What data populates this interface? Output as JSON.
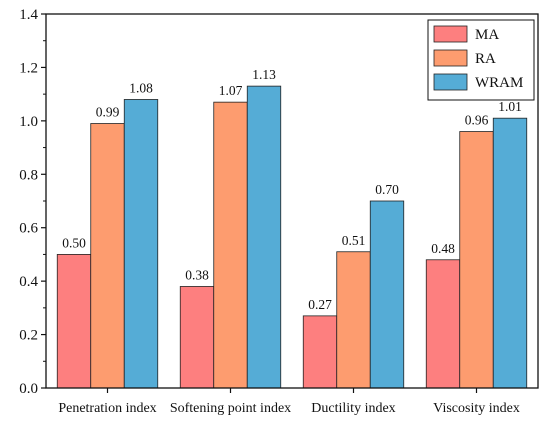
{
  "chart_data": {
    "type": "bar",
    "categories": [
      "Penetration index",
      "Softening point index",
      "Ductility index",
      "Viscosity index"
    ],
    "series": [
      {
        "name": "MA",
        "values": [
          0.5,
          0.38,
          0.27,
          0.48
        ],
        "color": "#fd7f7f"
      },
      {
        "name": "RA",
        "values": [
          0.99,
          1.07,
          0.51,
          0.96
        ],
        "color": "#fd9c6f"
      },
      {
        "name": "WRAM",
        "values": [
          1.08,
          1.13,
          0.7,
          1.01
        ],
        "color": "#55acd6"
      }
    ],
    "data_labels": [
      [
        "0.50",
        "0.99",
        "1.08"
      ],
      [
        "0.38",
        "1.07",
        "1.13"
      ],
      [
        "0.27",
        "0.51",
        "0.70"
      ],
      [
        "0.48",
        "0.96",
        "1.01"
      ]
    ],
    "title": "",
    "xlabel": "",
    "ylabel": "",
    "ylim": [
      0,
      1.4
    ],
    "yticks": [
      0.0,
      0.2,
      0.4,
      0.6,
      0.8,
      1.0,
      1.2,
      1.4
    ],
    "ytick_labels": [
      "0.0",
      "0.2",
      "0.4",
      "0.6",
      "0.8",
      "1.0",
      "1.2",
      "1.4"
    ],
    "grid": false,
    "legend_position": "top-right"
  }
}
